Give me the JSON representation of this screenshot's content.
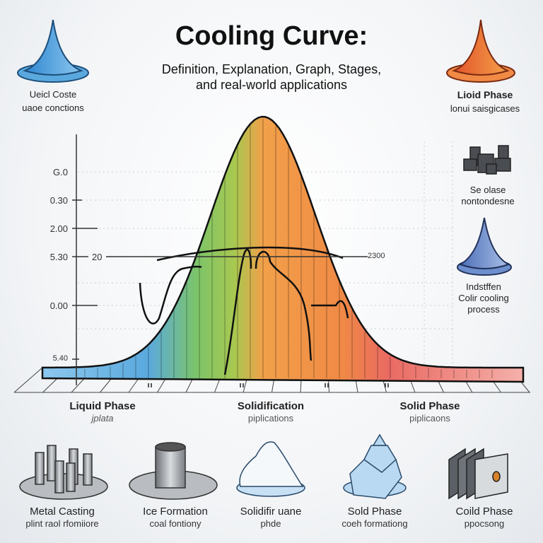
{
  "header": {
    "title": "Cooling Curve:",
    "subtitle_line1": "Definition, Explanation, Graph, Stages,",
    "subtitle_line2": "and real-world applications"
  },
  "corner_labels": {
    "top_left": {
      "line1": "Ueicl Coste",
      "line2": "uaoe conctions",
      "icon": "blue-cone-icon"
    },
    "top_right": {
      "line1": "Lioid Phase",
      "line2": "lonui saisgicases",
      "icon": "orange-cone-icon"
    },
    "right_middle": {
      "line1": "Se olase",
      "line2": "nontondesne",
      "icon": "dark-cubes-icon"
    },
    "right_lower": {
      "line1": "Indstffen",
      "line2": "Colir cooling",
      "line3": "process",
      "icon": "blue-cone-icon"
    }
  },
  "chart": {
    "y_tick_labels": [
      "G.0",
      "0.30",
      "2.00",
      "5.30",
      "0.00",
      "5.40"
    ],
    "inner_label_left": "20",
    "inner_label_right": "2300",
    "colors": {
      "liquid": "#5aa9de",
      "transition": "#7cc46a",
      "solidification": "#f2a04a",
      "solid": "#e96a62",
      "curve": "#111111"
    }
  },
  "phases": [
    {
      "label": "Liquid Phase",
      "sub": "jplata"
    },
    {
      "label": "Solidification",
      "sub": "piplications"
    },
    {
      "label": "Solid Phase",
      "sub": "piplicaons"
    }
  ],
  "applications": [
    {
      "label": "Metal Casting",
      "sub": "plint raol rfomiiore",
      "icon": "metal-cylinders-icon"
    },
    {
      "label": "Ice Formation",
      "sub": "coal fontiony",
      "icon": "metal-can-icon"
    },
    {
      "label": "Solidifir uane",
      "sub": "phde",
      "icon": "snow-pile-icon"
    },
    {
      "label": "Sold Phase",
      "sub": "coeh formationg",
      "icon": "ice-blocks-icon"
    },
    {
      "label": "Coild Phase",
      "sub": "ppocsong",
      "icon": "plates-icon"
    }
  ]
}
